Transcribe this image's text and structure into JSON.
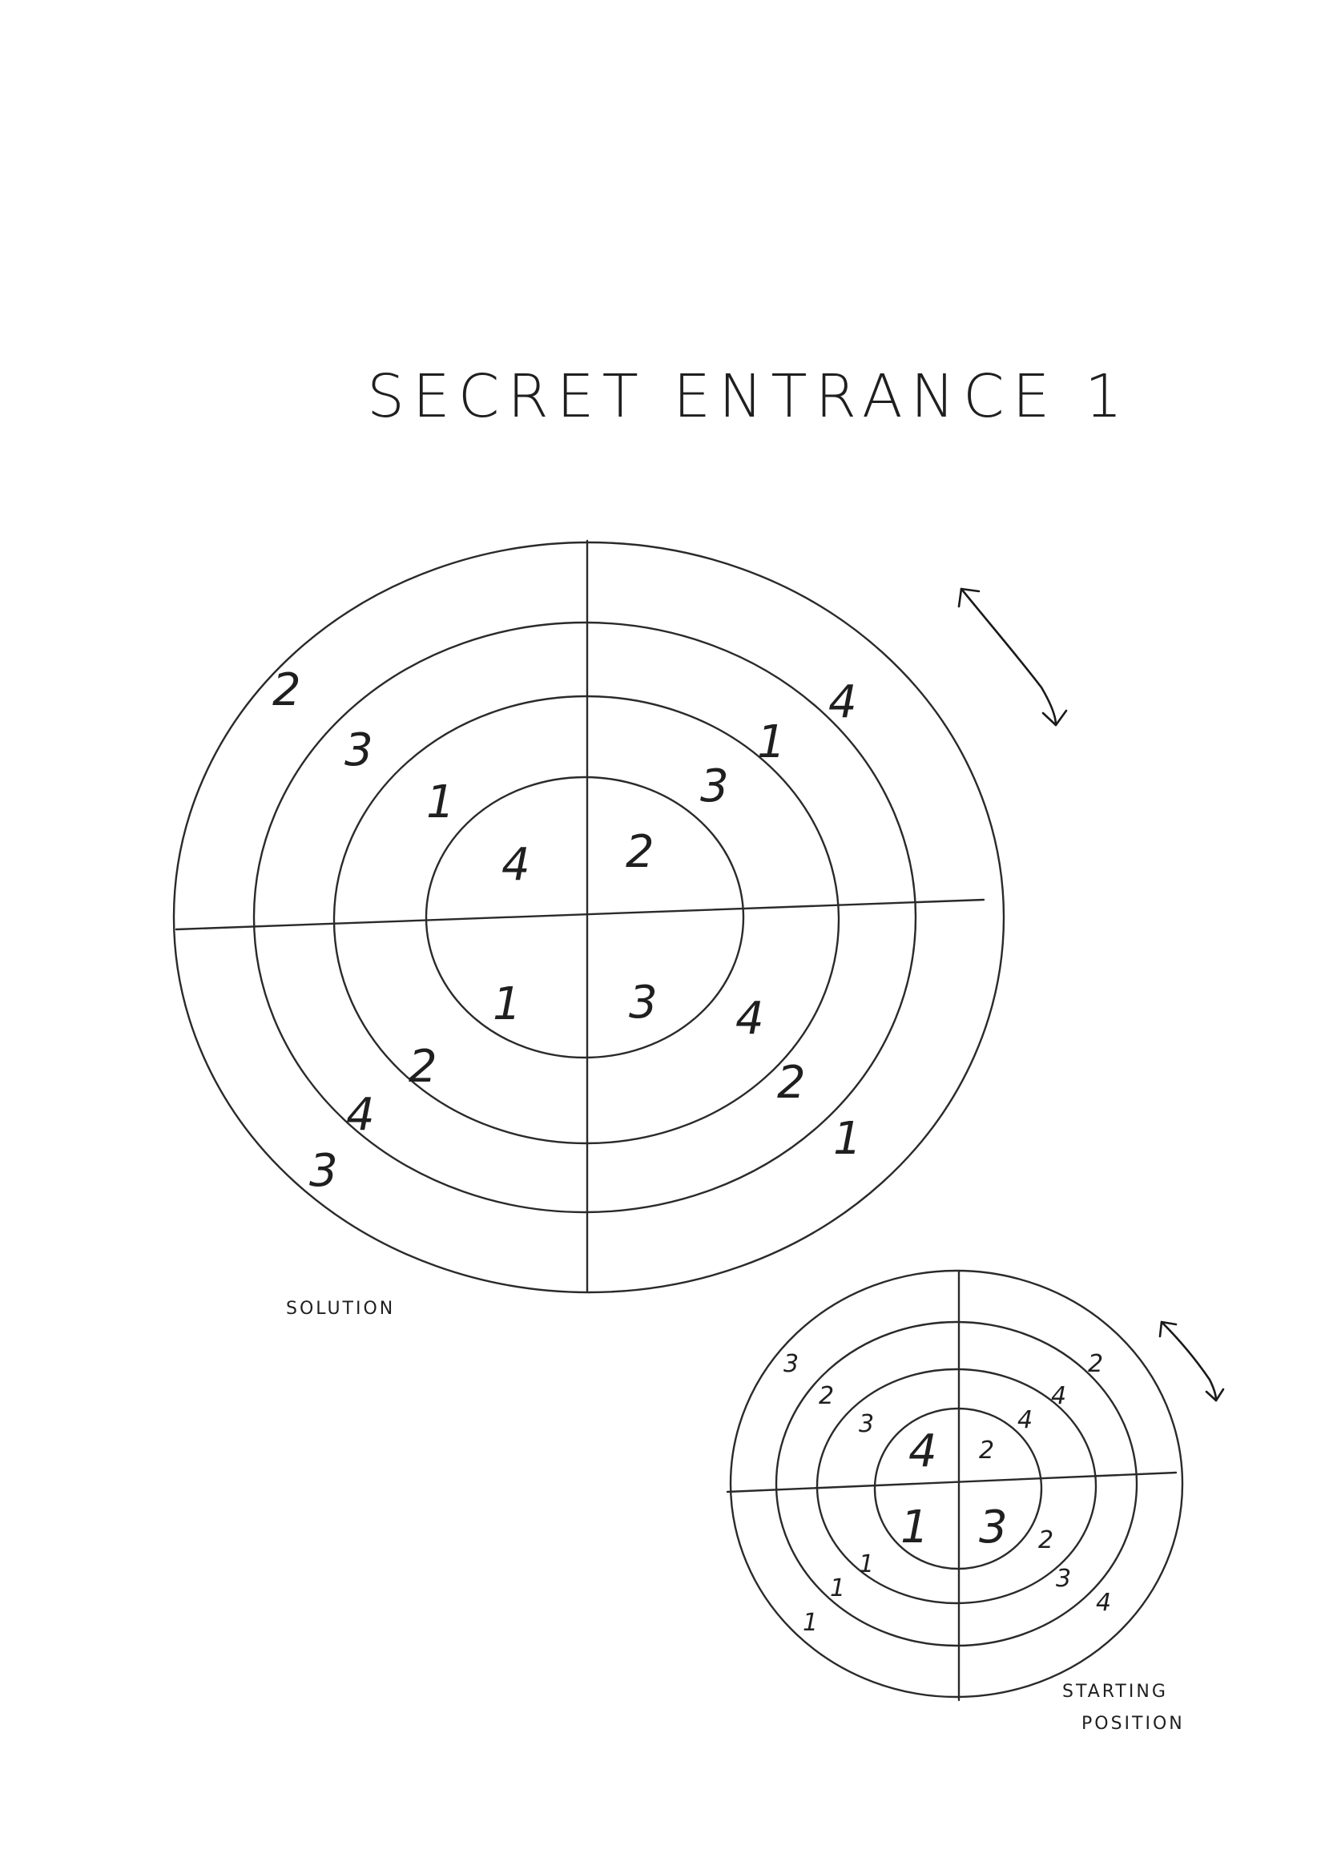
{
  "title": "SECRET ENTRANCE 1",
  "solution_label": "SOLUTION",
  "starting_label_line1": "STARTING",
  "starting_label_line2": "POSITION",
  "solution_dial": {
    "ring1": {
      "top_left": "4",
      "top_right": "2",
      "bottom_left": "1",
      "bottom_right": "3"
    },
    "ring2": {
      "top_left": "1",
      "top_right": "3",
      "bottom_left": "2",
      "bottom_right": "4"
    },
    "ring3": {
      "top_left": "3",
      "top_right": "1",
      "bottom_left": "4",
      "bottom_right": "2"
    },
    "ring4": {
      "top_left": "2",
      "top_right": "4",
      "bottom_left": "3",
      "bottom_right": "1"
    }
  },
  "starting_dial": {
    "ring1": {
      "top_left": "4",
      "top_right": "2",
      "bottom_left": "1",
      "bottom_right": "3"
    },
    "ring2": {
      "top_left": "3",
      "top_right": "4",
      "bottom_left": "1",
      "bottom_right": "2"
    },
    "ring3": {
      "top_left": "2",
      "top_right": "4",
      "bottom_left": "1",
      "bottom_right": "3"
    },
    "ring4": {
      "top_left": "3",
      "top_right": "2",
      "bottom_left": "1",
      "bottom_right": "4"
    }
  }
}
